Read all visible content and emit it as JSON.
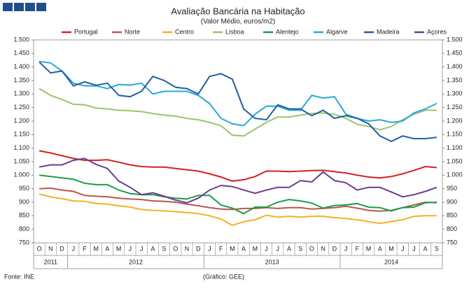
{
  "chart_data": {
    "type": "line",
    "title": "Avaliação Bancária na Habitação",
    "subtitle": "(Valor Médio, euros/m2)",
    "source": "Fonte: INE",
    "credit": "(Gráfico: GEE)",
    "categories": [
      "O",
      "N",
      "D",
      "J",
      "F",
      "M",
      "A",
      "M",
      "J",
      "J",
      "A",
      "S",
      "O",
      "N",
      "D",
      "J",
      "F",
      "M",
      "A",
      "M",
      "J",
      "J",
      "A",
      "S",
      "O",
      "N",
      "D",
      "J",
      "F",
      "M",
      "A",
      "M",
      "J",
      "J",
      "A",
      "S"
    ],
    "years": [
      "2011",
      "2012",
      "2013",
      "2014"
    ],
    "ylim": [
      750,
      1500
    ],
    "yticks": [
      {
        "value": 750,
        "label": "750"
      },
      {
        "value": 800,
        "label": "800"
      },
      {
        "value": 850,
        "label": "850"
      },
      {
        "value": 900,
        "label": "900"
      },
      {
        "value": 950,
        "label": "950"
      },
      {
        "value": 1000,
        "label": "1.000"
      },
      {
        "value": 1050,
        "label": "1.050"
      },
      {
        "value": 1100,
        "label": "1.100"
      },
      {
        "value": 1150,
        "label": "1.150"
      },
      {
        "value": 1200,
        "label": "1.200"
      },
      {
        "value": 1250,
        "label": "1.250"
      },
      {
        "value": 1300,
        "label": "1.300"
      },
      {
        "value": 1350,
        "label": "1.350"
      },
      {
        "value": 1400,
        "label": "1.400"
      },
      {
        "value": 1450,
        "label": "1.450"
      },
      {
        "value": 1500,
        "label": "1.500"
      }
    ],
    "grid": false,
    "series": [
      {
        "name": "Portugal",
        "color": "#d42020",
        "values": [
          1090,
          1082,
          1072,
          1062,
          1055,
          1055,
          1057,
          1048,
          1038,
          1032,
          1030,
          1030,
          1025,
          1020,
          1015,
          1005,
          993,
          978,
          983,
          995,
          1015,
          1015,
          1013,
          1015,
          1017,
          1018,
          1013,
          1008,
          1000,
          993,
          990,
          995,
          1005,
          1018,
          1032,
          1028
        ]
      },
      {
        "name": "Norte",
        "color": "#b9574f",
        "values": [
          950,
          952,
          945,
          940,
          925,
          922,
          920,
          915,
          912,
          910,
          905,
          903,
          900,
          893,
          887,
          880,
          875,
          873,
          877,
          877,
          880,
          877,
          880,
          880,
          875,
          877,
          880,
          885,
          878,
          870,
          867,
          870,
          880,
          890,
          900,
          898
        ]
      },
      {
        "name": "Centro",
        "color": "#f0b323",
        "values": [
          930,
          920,
          913,
          905,
          903,
          895,
          893,
          887,
          882,
          873,
          870,
          868,
          865,
          862,
          858,
          850,
          838,
          815,
          828,
          835,
          852,
          845,
          848,
          845,
          848,
          848,
          843,
          840,
          835,
          828,
          822,
          828,
          835,
          848,
          850,
          850
        ]
      },
      {
        "name": "Lisboa",
        "color": "#9bc36b",
        "values": [
          1320,
          1295,
          1280,
          1262,
          1260,
          1248,
          1245,
          1240,
          1238,
          1235,
          1228,
          1222,
          1218,
          1210,
          1205,
          1195,
          1183,
          1148,
          1145,
          1170,
          1195,
          1215,
          1215,
          1222,
          1228,
          1230,
          1225,
          1210,
          1188,
          1180,
          1168,
          1180,
          1205,
          1225,
          1240,
          1240
        ]
      },
      {
        "name": "Alentejo",
        "color": "#1a9f4b",
        "values": [
          1000,
          995,
          990,
          985,
          970,
          965,
          965,
          945,
          932,
          928,
          928,
          920,
          915,
          912,
          925,
          925,
          890,
          878,
          858,
          882,
          882,
          900,
          910,
          905,
          897,
          878,
          888,
          890,
          895,
          882,
          880,
          868,
          880,
          882,
          898,
          900
        ]
      },
      {
        "name": "Algarve",
        "color": "#2aa8dc",
        "values": [
          1420,
          1415,
          1385,
          1340,
          1330,
          1330,
          1320,
          1335,
          1333,
          1340,
          1300,
          1310,
          1310,
          1310,
          1295,
          1265,
          1210,
          1190,
          1183,
          1225,
          1255,
          1255,
          1240,
          1240,
          1295,
          1285,
          1290,
          1225,
          1210,
          1200,
          1205,
          1195,
          1200,
          1230,
          1245,
          1265
        ]
      },
      {
        "name": "Madeira",
        "color": "#1f5fa0",
        "values": [
          1418,
          1378,
          1385,
          1330,
          1345,
          1332,
          1340,
          1295,
          1290,
          1310,
          1365,
          1350,
          1325,
          1320,
          1300,
          1365,
          1375,
          1355,
          1245,
          1210,
          1205,
          1260,
          1245,
          1245,
          1220,
          1240,
          1210,
          1220,
          1210,
          1190,
          1145,
          1125,
          1145,
          1135,
          1135,
          1140
        ]
      },
      {
        "name": "Açores",
        "color": "#6a3d8f",
        "values": [
          1030,
          1038,
          1038,
          1055,
          1062,
          1040,
          1025,
          978,
          955,
          928,
          935,
          922,
          908,
          898,
          915,
          945,
          962,
          958,
          945,
          933,
          945,
          955,
          955,
          980,
          975,
          1012,
          980,
          972,
          945,
          955,
          955,
          938,
          920,
          928,
          940,
          955
        ]
      }
    ]
  }
}
